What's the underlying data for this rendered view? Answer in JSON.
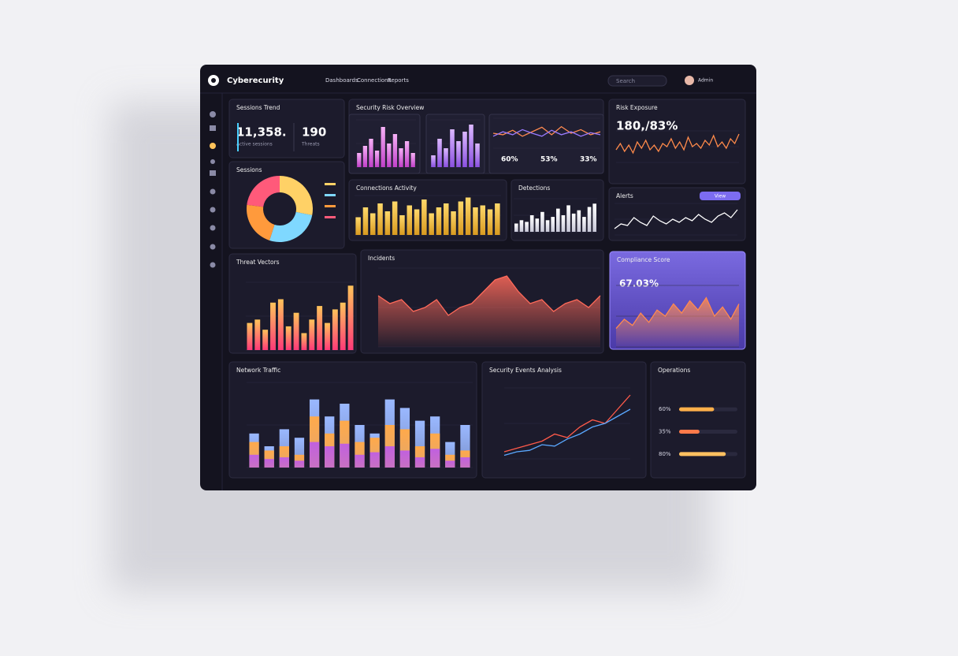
{
  "header": {
    "brand": "Cyberecurity",
    "nav": [
      "Dashboards",
      "Connections",
      "Reports"
    ],
    "search": "Search",
    "user": "Admin"
  },
  "panels": [
    {
      "title": "Sessions Trend",
      "kpis": [
        "11,358.",
        "190"
      ],
      "notes": [
        "Active sessions",
        "Threats"
      ]
    },
    {
      "title": "Sessions",
      "charts": [
        {
          "type": "donut",
          "values": [
            28,
            27,
            22,
            23
          ],
          "colors": [
            "#ffd166",
            "#7fd8ff",
            "#ff9a3c",
            "#ff5a7a"
          ]
        }
      ]
    },
    {
      "title": "Security Risk Overview",
      "stats": [
        "60%",
        "53%",
        "33%"
      ],
      "charts": [
        {
          "type": "bar",
          "values": [
            30,
            45,
            60,
            35,
            85,
            50,
            70,
            40,
            55,
            30
          ],
          "colors": [
            "#f6b0f6",
            "#c040c8"
          ],
          "ylim": [
            0,
            100
          ]
        },
        {
          "type": "bar",
          "values": [
            25,
            60,
            40,
            80,
            55,
            75,
            90,
            50
          ],
          "colors": [
            "#dcb8ff",
            "#8a50e0"
          ],
          "ylim": [
            0,
            100
          ]
        },
        {
          "type": "line",
          "ylim": [
            0,
            100
          ],
          "series": [
            {
              "color": "#ff8a50",
              "values": [
                50,
                45,
                60,
                40,
                55,
                70,
                45,
                72,
                50,
                62,
                45,
                55
              ]
            },
            {
              "color": "#9a7bff",
              "values": [
                40,
                55,
                45,
                62,
                50,
                40,
                60,
                45,
                55,
                40,
                52,
                45
              ]
            }
          ]
        }
      ]
    },
    {
      "title": "Connections Activity",
      "charts": [
        {
          "type": "bar",
          "values": [
            45,
            70,
            55,
            80,
            60,
            85,
            50,
            75,
            65,
            90,
            55,
            70,
            80,
            60,
            85,
            95,
            70,
            75,
            65,
            80
          ],
          "colors": [
            "#ffd86a",
            "#d89a20"
          ],
          "ylim": [
            0,
            100
          ]
        }
      ]
    },
    {
      "title": "Detections",
      "charts": [
        {
          "type": "bar",
          "values": [
            25,
            35,
            30,
            50,
            40,
            60,
            35,
            45,
            70,
            50,
            80,
            55,
            65,
            45,
            75,
            85
          ],
          "colors": [
            "#ffffff",
            "#c8c8d8"
          ],
          "ylim": [
            0,
            100
          ]
        }
      ]
    },
    {
      "title": "Risk Exposure",
      "kpis": [
        "180,/83%"
      ],
      "charts": [
        {
          "type": "line",
          "ylim": [
            0,
            100
          ],
          "series": [
            {
              "color": "#ff8a4a",
              "values": [
                40,
                60,
                35,
                55,
                30,
                65,
                45,
                70,
                40,
                55,
                35,
                60,
                50,
                75,
                45,
                65,
                40,
                80,
                50,
                60,
                45,
                70,
                55,
                85,
                50,
                65,
                45,
                75,
                60,
                90
              ]
            }
          ]
        }
      ]
    },
    {
      "title": "Alerts",
      "button": "View",
      "charts": [
        {
          "type": "line",
          "ylim": [
            0,
            100
          ],
          "series": [
            {
              "color": "#ffffff",
              "values": [
                20,
                35,
                30,
                55,
                40,
                30,
                60,
                45,
                35,
                50,
                40,
                55,
                45,
                65,
                50,
                40,
                60,
                70,
                55,
                80
              ]
            }
          ]
        }
      ]
    },
    {
      "title": "Threat Vectors",
      "charts": [
        {
          "type": "bar",
          "values": [
            40,
            45,
            30,
            70,
            75,
            35,
            55,
            25,
            45,
            65,
            40,
            60,
            70,
            95
          ],
          "colors": [
            "#ffc35a",
            "#ff3a78"
          ],
          "ylim": [
            0,
            100
          ]
        }
      ]
    },
    {
      "title": "Incidents",
      "charts": [
        {
          "type": "area",
          "values": [
            65,
            55,
            60,
            45,
            50,
            60,
            40,
            50,
            55,
            70,
            85,
            90,
            70,
            55,
            60,
            45,
            55,
            60,
            50,
            65
          ],
          "color": "#ff6a5a",
          "ylim": [
            0,
            100
          ]
        }
      ]
    },
    {
      "title": "Compliance Score",
      "kpis": [
        "67.03%"
      ],
      "charts": [
        {
          "type": "area",
          "values": [
            30,
            45,
            35,
            55,
            40,
            60,
            50,
            70,
            55,
            75,
            60,
            80,
            50,
            65,
            45,
            70
          ],
          "color": "#ff8a50",
          "ylim": [
            0,
            100
          ]
        }
      ]
    },
    {
      "title": "Network Traffic",
      "charts": [
        {
          "type": "overlay",
          "ylim": [
            0,
            100
          ],
          "series": [
            {
              "color": "#9ab8ff",
              "values": [
                40,
                25,
                45,
                35,
                80,
                60,
                75,
                50,
                40,
                80,
                70,
                55,
                60,
                30,
                50
              ]
            },
            {
              "color": "#ffa94a",
              "values": [
                30,
                20,
                25,
                15,
                60,
                40,
                55,
                30,
                35,
                50,
                45,
                25,
                40,
                15,
                20
              ]
            },
            {
              "color": "#c060e0",
              "values": [
                15,
                10,
                12,
                8,
                30,
                25,
                28,
                15,
                18,
                25,
                20,
                12,
                22,
                8,
                12
              ]
            }
          ]
        }
      ]
    },
    {
      "title": "Security Events Analysis",
      "charts": [
        {
          "type": "line",
          "ylim": [
            0,
            100
          ],
          "series": [
            {
              "color": "#ff5a4a",
              "values": [
                10,
                15,
                20,
                25,
                35,
                30,
                45,
                55,
                50,
                70,
                90
              ]
            },
            {
              "color": "#5aa8ff",
              "values": [
                5,
                10,
                12,
                20,
                18,
                28,
                35,
                45,
                50,
                60,
                70
              ]
            }
          ]
        }
      ]
    },
    {
      "title": "Operations",
      "charts": [
        {
          "type": "progress",
          "values": [
            60,
            35,
            80
          ],
          "value_labels": [
            "60%",
            "35%",
            "80%"
          ],
          "colors": [
            "#ffb04a",
            "#ff7a4a",
            "#ffc060"
          ],
          "ylim": [
            0,
            100
          ]
        }
      ]
    }
  ]
}
